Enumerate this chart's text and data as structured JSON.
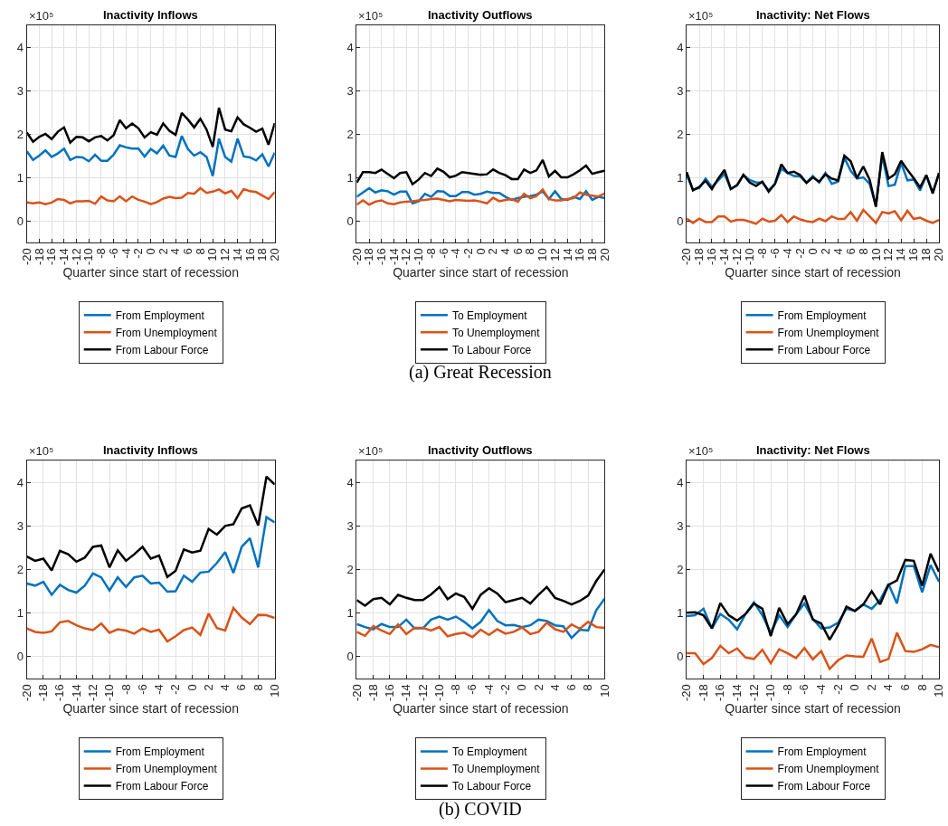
{
  "chart_data": [
    {
      "type": "line",
      "title": "Inactivity Inflows",
      "xlabel": "Quarter since start of recession",
      "ylabel": "×10⁵",
      "xlim": [
        -20,
        20
      ],
      "ylim": [
        -0.5,
        4.5
      ],
      "xticks": [
        -20,
        -18,
        -16,
        -14,
        -12,
        -10,
        -8,
        -6,
        -4,
        -2,
        0,
        2,
        4,
        6,
        8,
        10,
        12,
        14,
        16,
        18,
        20
      ],
      "yticks": [
        0,
        1,
        2,
        3,
        4
      ],
      "grid": true,
      "legend": "bottom",
      "x": [
        -20,
        -19,
        -18,
        -17,
        -16,
        -15,
        -14,
        -13,
        -12,
        -11,
        -10,
        -9,
        -8,
        -7,
        -6,
        -5,
        -4,
        -3,
        -2,
        -1,
        0,
        1,
        2,
        3,
        4,
        5,
        6,
        7,
        8,
        9,
        10,
        11,
        12,
        13,
        14,
        15,
        16,
        17,
        18,
        19,
        20
      ],
      "series": [
        {
          "name": "From Employment",
          "color": "#0072bd",
          "values": [
            1.6,
            1.4,
            1.5,
            1.62,
            1.47,
            1.55,
            1.66,
            1.4,
            1.47,
            1.46,
            1.37,
            1.52,
            1.38,
            1.38,
            1.52,
            1.74,
            1.69,
            1.66,
            1.66,
            1.48,
            1.65,
            1.55,
            1.73,
            1.5,
            1.47,
            1.95,
            1.65,
            1.5,
            1.58,
            1.47,
            1.03,
            1.89,
            1.47,
            1.36,
            1.89,
            1.48,
            1.46,
            1.39,
            1.53,
            1.25,
            1.57
          ]
        },
        {
          "name": "From Unemployment",
          "color": "#d95319",
          "values": [
            0.42,
            0.4,
            0.42,
            0.38,
            0.42,
            0.5,
            0.48,
            0.4,
            0.45,
            0.45,
            0.46,
            0.39,
            0.56,
            0.47,
            0.45,
            0.56,
            0.45,
            0.56,
            0.48,
            0.44,
            0.38,
            0.43,
            0.51,
            0.55,
            0.52,
            0.53,
            0.64,
            0.62,
            0.75,
            0.64,
            0.67,
            0.72,
            0.63,
            0.69,
            0.52,
            0.73,
            0.68,
            0.66,
            0.58,
            0.5,
            0.66
          ]
        },
        {
          "name": "From Labour Force",
          "color": "#000000",
          "values": [
            2.03,
            1.82,
            1.93,
            2.0,
            1.88,
            2.05,
            2.15,
            1.8,
            1.93,
            1.92,
            1.83,
            1.92,
            1.95,
            1.85,
            1.97,
            2.32,
            2.13,
            2.24,
            2.13,
            1.92,
            2.04,
            1.98,
            2.24,
            2.07,
            1.98,
            2.48,
            2.33,
            2.15,
            2.35,
            2.1,
            1.7,
            2.6,
            2.1,
            2.06,
            2.38,
            2.22,
            2.14,
            2.05,
            2.12,
            1.75,
            2.25
          ]
        }
      ]
    },
    {
      "type": "line",
      "title": "Inactivity Outflows",
      "xlabel": "Quarter since start of recession",
      "ylabel": "×10⁵",
      "xlim": [
        -20,
        20
      ],
      "ylim": [
        -0.5,
        4.5
      ],
      "xticks": [
        -20,
        -18,
        -16,
        -14,
        -12,
        -10,
        -8,
        -6,
        -4,
        -2,
        0,
        2,
        4,
        6,
        8,
        10,
        12,
        14,
        16,
        18,
        20
      ],
      "yticks": [
        0,
        1,
        2,
        3,
        4
      ],
      "grid": true,
      "legend": "bottom",
      "annotations": [
        "(a) Great Recession"
      ],
      "x": [
        -20,
        -19,
        -18,
        -17,
        -16,
        -15,
        -14,
        -13,
        -12,
        -11,
        -10,
        -9,
        -8,
        -7,
        -6,
        -5,
        -4,
        -3,
        -2,
        -1,
        0,
        1,
        2,
        3,
        4,
        5,
        6,
        7,
        8,
        9,
        10,
        11,
        12,
        13,
        14,
        15,
        16,
        17,
        18,
        19,
        20
      ],
      "series": [
        {
          "name": "To Employment",
          "color": "#0072bd",
          "values": [
            0.55,
            0.65,
            0.75,
            0.65,
            0.7,
            0.68,
            0.6,
            0.67,
            0.67,
            0.4,
            0.45,
            0.62,
            0.55,
            0.68,
            0.67,
            0.57,
            0.57,
            0.66,
            0.66,
            0.6,
            0.62,
            0.67,
            0.64,
            0.64,
            0.55,
            0.48,
            0.52,
            0.55,
            0.57,
            0.6,
            0.68,
            0.5,
            0.68,
            0.5,
            0.48,
            0.55,
            0.5,
            0.68,
            0.48,
            0.55,
            0.52
          ]
        },
        {
          "name": "To Unemployment",
          "color": "#d95319",
          "values": [
            0.37,
            0.47,
            0.37,
            0.44,
            0.47,
            0.4,
            0.38,
            0.42,
            0.44,
            0.45,
            0.47,
            0.48,
            0.5,
            0.51,
            0.48,
            0.45,
            0.48,
            0.47,
            0.46,
            0.47,
            0.44,
            0.4,
            0.53,
            0.45,
            0.48,
            0.5,
            0.44,
            0.62,
            0.52,
            0.57,
            0.72,
            0.5,
            0.47,
            0.47,
            0.5,
            0.52,
            0.65,
            0.6,
            0.58,
            0.56,
            0.63
          ]
        },
        {
          "name": "To Labour Force",
          "color": "#000000",
          "values": [
            0.88,
            1.12,
            1.12,
            1.1,
            1.18,
            1.08,
            0.98,
            1.1,
            1.12,
            0.84,
            0.95,
            1.1,
            1.03,
            1.2,
            1.13,
            1.0,
            1.04,
            1.12,
            1.1,
            1.08,
            1.06,
            1.07,
            1.18,
            1.1,
            1.05,
            0.96,
            0.96,
            1.18,
            1.1,
            1.16,
            1.4,
            1.02,
            1.15,
            1.0,
            1.0,
            1.07,
            1.16,
            1.27,
            1.08,
            1.12,
            1.15
          ]
        }
      ]
    },
    {
      "type": "line",
      "title": "Inactivity: Net Flows",
      "xlabel": "Quarter since start of recession",
      "ylabel": "×10⁵",
      "xlim": [
        -20,
        20
      ],
      "ylim": [
        -0.5,
        4.5
      ],
      "xticks": [
        -20,
        -18,
        -16,
        -14,
        -12,
        -10,
        -8,
        -6,
        -4,
        -2,
        0,
        2,
        4,
        6,
        8,
        10,
        12,
        14,
        16,
        18,
        20
      ],
      "yticks": [
        0,
        1,
        2,
        3,
        4
      ],
      "grid": true,
      "legend": "bottom",
      "x": [
        -20,
        -19,
        -18,
        -17,
        -16,
        -15,
        -14,
        -13,
        -12,
        -11,
        -10,
        -9,
        -8,
        -7,
        -6,
        -5,
        -4,
        -3,
        -2,
        -1,
        0,
        1,
        2,
        3,
        4,
        5,
        6,
        7,
        8,
        9,
        10,
        11,
        12,
        13,
        14,
        15,
        16,
        17,
        18,
        19,
        20
      ],
      "series": [
        {
          "name": "From Employment",
          "color": "#0072bd",
          "values": [
            1.05,
            0.72,
            0.75,
            0.97,
            0.78,
            0.93,
            1.08,
            0.73,
            0.82,
            1.05,
            0.94,
            0.88,
            0.88,
            0.7,
            0.85,
            1.2,
            1.1,
            1.03,
            1.02,
            0.88,
            1.03,
            0.88,
            1.1,
            0.85,
            0.9,
            1.45,
            1.15,
            0.97,
            1.0,
            0.85,
            0.35,
            1.5,
            0.8,
            0.83,
            1.33,
            0.93,
            0.95,
            0.7,
            1.05,
            0.65,
            1.08
          ]
        },
        {
          "name": "From Unemployment",
          "color": "#d95319",
          "values": [
            0.05,
            -0.05,
            0.05,
            -0.03,
            -0.03,
            0.1,
            0.1,
            -0.02,
            0.02,
            0.02,
            -0.02,
            -0.07,
            0.05,
            -0.02,
            0.0,
            0.13,
            -0.03,
            0.1,
            0.03,
            -0.01,
            -0.03,
            0.05,
            -0.01,
            0.1,
            0.04,
            0.04,
            0.2,
            0.0,
            0.25,
            0.1,
            -0.05,
            0.2,
            0.17,
            0.22,
            0.01,
            0.23,
            0.04,
            0.07,
            0.0,
            -0.05,
            0.02
          ]
        },
        {
          "name": "From Labour Force",
          "color": "#000000",
          "values": [
            1.12,
            0.7,
            0.78,
            0.92,
            0.73,
            0.97,
            1.17,
            0.73,
            0.82,
            1.06,
            0.88,
            0.8,
            0.9,
            0.67,
            0.85,
            1.3,
            1.1,
            1.13,
            1.05,
            0.87,
            1.0,
            0.9,
            1.07,
            0.97,
            0.93,
            1.5,
            1.37,
            0.98,
            1.25,
            0.95,
            0.32,
            1.58,
            0.97,
            1.07,
            1.38,
            1.17,
            0.98,
            0.77,
            1.05,
            0.63,
            1.1
          ]
        }
      ]
    },
    {
      "type": "line",
      "title": "Inactivity Inflows",
      "xlabel": "Quarter since start of recession",
      "ylabel": "×10⁵",
      "xlim": [
        -20,
        10
      ],
      "ylim": [
        -0.5,
        4.5
      ],
      "xticks": [
        -20,
        -18,
        -16,
        -14,
        -12,
        -10,
        -8,
        -6,
        -4,
        -2,
        0,
        2,
        4,
        6,
        8,
        10
      ],
      "yticks": [
        0,
        1,
        2,
        3,
        4
      ],
      "grid": true,
      "legend": "bottom",
      "x": [
        -20,
        -19,
        -18,
        -17,
        -16,
        -15,
        -14,
        -13,
        -12,
        -11,
        -10,
        -9,
        -8,
        -7,
        -6,
        -5,
        -4,
        -3,
        -2,
        -1,
        0,
        1,
        2,
        3,
        4,
        5,
        6,
        7,
        8,
        9,
        10
      ],
      "series": [
        {
          "name": "From Employment",
          "color": "#0072bd",
          "values": [
            1.68,
            1.63,
            1.72,
            1.42,
            1.65,
            1.53,
            1.47,
            1.63,
            1.91,
            1.82,
            1.52,
            1.82,
            1.6,
            1.82,
            1.86,
            1.68,
            1.7,
            1.49,
            1.5,
            1.86,
            1.72,
            1.93,
            1.95,
            2.15,
            2.4,
            1.92,
            2.52,
            2.72,
            2.05,
            3.2,
            3.08
          ]
        },
        {
          "name": "From Unemployment",
          "color": "#d95319",
          "values": [
            0.65,
            0.57,
            0.55,
            0.58,
            0.79,
            0.82,
            0.72,
            0.65,
            0.61,
            0.76,
            0.55,
            0.63,
            0.6,
            0.53,
            0.65,
            0.57,
            0.62,
            0.35,
            0.47,
            0.61,
            0.67,
            0.5,
            0.99,
            0.66,
            0.6,
            1.12,
            0.9,
            0.75,
            0.96,
            0.95,
            0.89
          ]
        },
        {
          "name": "From Labour Force",
          "color": "#000000",
          "values": [
            2.3,
            2.2,
            2.25,
            1.98,
            2.43,
            2.35,
            2.18,
            2.27,
            2.52,
            2.55,
            2.05,
            2.44,
            2.2,
            2.35,
            2.52,
            2.25,
            2.32,
            1.83,
            1.97,
            2.46,
            2.39,
            2.43,
            2.93,
            2.8,
            3.0,
            3.04,
            3.4,
            3.47,
            3.01,
            4.13,
            3.95
          ]
        }
      ]
    },
    {
      "type": "line",
      "title": "Inactivity Outflows",
      "xlabel": "Quarter since start of recession",
      "ylabel": "×10⁵",
      "xlim": [
        -20,
        10
      ],
      "ylim": [
        -0.5,
        4.5
      ],
      "xticks": [
        -20,
        -18,
        -16,
        -14,
        -12,
        -10,
        -8,
        -6,
        -4,
        -2,
        0,
        2,
        4,
        6,
        8,
        10
      ],
      "yticks": [
        0,
        1,
        2,
        3,
        4
      ],
      "grid": true,
      "legend": "bottom",
      "annotations": [
        "(b) COVID"
      ],
      "x": [
        -20,
        -19,
        -18,
        -17,
        -16,
        -15,
        -14,
        -13,
        -12,
        -11,
        -10,
        -9,
        -8,
        -7,
        -6,
        -5,
        -4,
        -3,
        -2,
        -1,
        0,
        1,
        2,
        3,
        4,
        5,
        6,
        7,
        8,
        9,
        10
      ],
      "series": [
        {
          "name": "To Employment",
          "color": "#0072bd",
          "values": [
            0.75,
            0.68,
            0.63,
            0.75,
            0.68,
            0.68,
            0.85,
            0.65,
            0.65,
            0.85,
            0.92,
            0.85,
            0.92,
            0.8,
            0.65,
            0.8,
            1.07,
            0.82,
            0.72,
            0.73,
            0.68,
            0.72,
            0.85,
            0.82,
            0.72,
            0.7,
            0.43,
            0.62,
            0.6,
            1.07,
            1.33
          ]
        },
        {
          "name": "To Unemployment",
          "color": "#d95319",
          "values": [
            0.57,
            0.48,
            0.7,
            0.6,
            0.52,
            0.74,
            0.52,
            0.66,
            0.66,
            0.6,
            0.68,
            0.47,
            0.52,
            0.55,
            0.45,
            0.62,
            0.5,
            0.63,
            0.53,
            0.57,
            0.67,
            0.52,
            0.57,
            0.78,
            0.63,
            0.57,
            0.74,
            0.64,
            0.8,
            0.68,
            0.66
          ]
        },
        {
          "name": "To Labour Force",
          "color": "#000000",
          "values": [
            1.3,
            1.17,
            1.32,
            1.35,
            1.2,
            1.42,
            1.35,
            1.3,
            1.3,
            1.43,
            1.6,
            1.32,
            1.45,
            1.37,
            1.1,
            1.42,
            1.57,
            1.45,
            1.25,
            1.3,
            1.35,
            1.22,
            1.42,
            1.6,
            1.35,
            1.28,
            1.2,
            1.28,
            1.4,
            1.74,
            2.0
          ]
        }
      ]
    },
    {
      "type": "line",
      "title": "Inactivity: Net Flows",
      "xlabel": "Quarter since start of recession",
      "ylabel": "×10⁵",
      "xlim": [
        -20,
        10
      ],
      "ylim": [
        -0.5,
        4.5
      ],
      "xticks": [
        -20,
        -18,
        -16,
        -14,
        -12,
        -10,
        -8,
        -6,
        -4,
        -2,
        0,
        2,
        4,
        6,
        8,
        10
      ],
      "yticks": [
        0,
        1,
        2,
        3,
        4
      ],
      "grid": true,
      "legend": "bottom",
      "x": [
        -20,
        -19,
        -18,
        -17,
        -16,
        -15,
        -14,
        -13,
        -12,
        -11,
        -10,
        -9,
        -8,
        -7,
        -6,
        -5,
        -4,
        -3,
        -2,
        -1,
        0,
        1,
        2,
        3,
        4,
        5,
        6,
        7,
        8,
        9,
        10
      ],
      "series": [
        {
          "name": "From Employment",
          "color": "#0072bd",
          "values": [
            0.93,
            0.95,
            1.1,
            0.65,
            0.98,
            0.85,
            0.63,
            0.98,
            1.25,
            0.95,
            0.55,
            0.95,
            0.68,
            0.97,
            1.22,
            0.87,
            0.65,
            0.67,
            0.78,
            1.1,
            1.05,
            1.2,
            1.1,
            1.3,
            1.67,
            1.22,
            2.08,
            2.08,
            1.48,
            2.1,
            1.72
          ]
        },
        {
          "name": "From Unemployment",
          "color": "#d95319",
          "values": [
            0.08,
            0.08,
            -0.17,
            -0.03,
            0.25,
            0.08,
            0.19,
            -0.02,
            -0.05,
            0.16,
            -0.15,
            0.17,
            0.08,
            -0.03,
            0.2,
            -0.06,
            0.13,
            -0.28,
            -0.08,
            0.03,
            0.01,
            0.0,
            0.42,
            -0.12,
            -0.05,
            0.55,
            0.13,
            0.11,
            0.17,
            0.27,
            0.22
          ]
        },
        {
          "name": "From Labour Force",
          "color": "#000000",
          "values": [
            1.01,
            1.02,
            0.95,
            0.65,
            1.23,
            0.95,
            0.83,
            0.98,
            1.22,
            1.1,
            0.47,
            1.12,
            0.75,
            0.97,
            1.4,
            0.85,
            0.76,
            0.39,
            0.72,
            1.15,
            1.05,
            1.2,
            1.5,
            1.2,
            1.65,
            1.75,
            2.22,
            2.2,
            1.63,
            2.36,
            1.95
          ]
        }
      ]
    }
  ]
}
